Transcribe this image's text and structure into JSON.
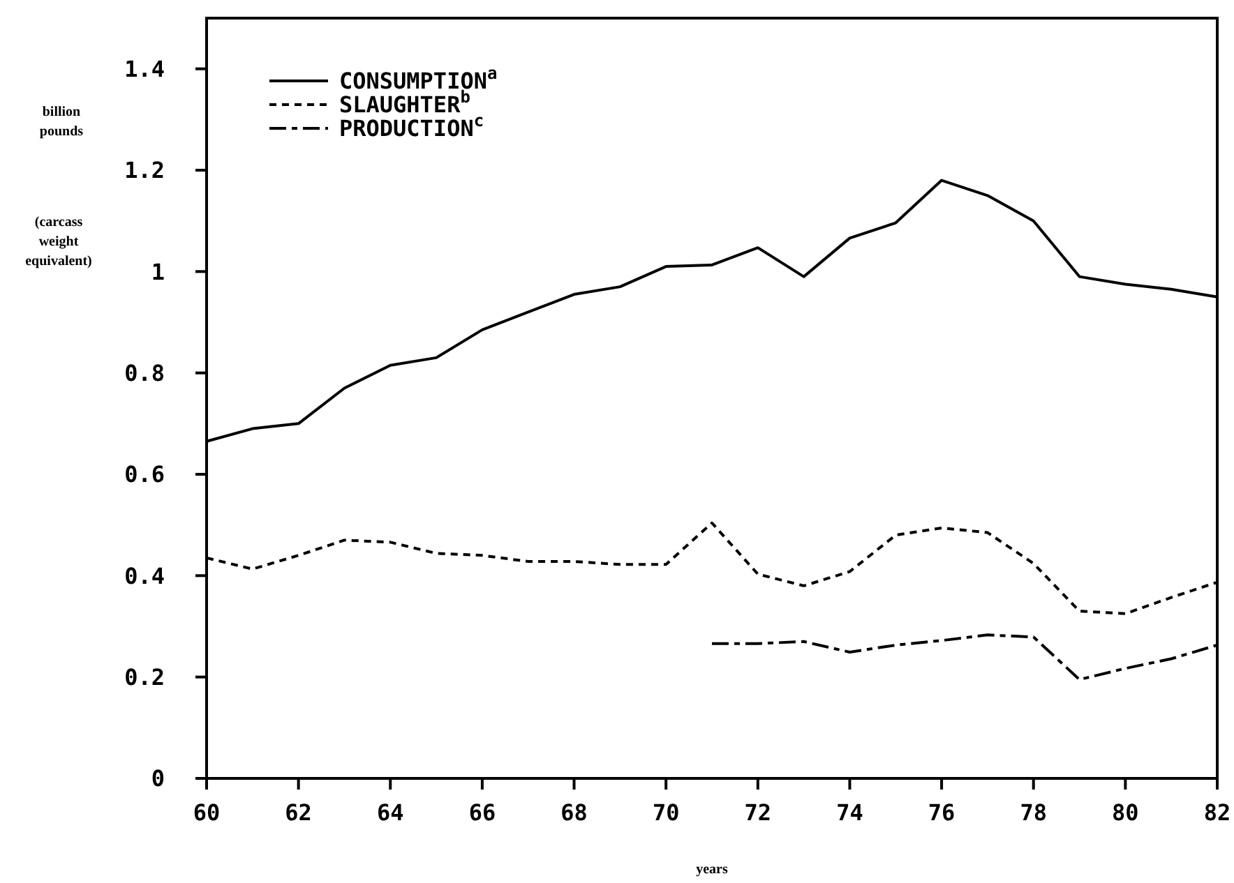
{
  "chart_data": {
    "type": "line",
    "xlabel": "years",
    "ylabel": "billion pounds",
    "annotations": [
      "(carcass weight equivalent)"
    ],
    "x": [
      60,
      61,
      62,
      63,
      64,
      65,
      66,
      67,
      68,
      69,
      70,
      71,
      72,
      73,
      74,
      75,
      76,
      77,
      78,
      79,
      80,
      81,
      82
    ],
    "xlim": [
      60,
      82
    ],
    "xticks": [
      60,
      62,
      64,
      66,
      68,
      70,
      72,
      74,
      76,
      78,
      80,
      82
    ],
    "ylim": [
      0,
      1.5
    ],
    "yticks": [
      0,
      {
        "value": 0.2,
        "label": "0.2"
      },
      {
        "value": 0.4,
        "label": "0.4"
      },
      {
        "value": 0.6,
        "label": "0.6"
      },
      {
        "value": 0.8,
        "label": "0.8"
      },
      1,
      {
        "value": 1.2,
        "label": "1.2"
      },
      {
        "value": 1.4,
        "label": "1.4"
      }
    ],
    "grid": false,
    "legend": "top left",
    "marker": "none",
    "series": [
      {
        "name": "CONSUMPTION$^{a}$",
        "color": "#000000",
        "line_style": "solid",
        "values": [
          0.665,
          0.69,
          0.7,
          0.77,
          0.815,
          0.83,
          0.885,
          0.92,
          0.955,
          0.97,
          1.01,
          1.013,
          1.047,
          0.99,
          1.066,
          1.096,
          1.18,
          1.15,
          1.1,
          0.99,
          0.975,
          0.965,
          0.95
        ]
      },
      {
        "name": "SLAUGHTER$^{b}$",
        "color": "#000000",
        "line_style": "dotted",
        "values": [
          0.435,
          0.413,
          0.44,
          0.47,
          0.466,
          0.444,
          0.44,
          0.428,
          0.428,
          0.422,
          0.422,
          0.504,
          0.403,
          0.38,
          0.408,
          0.48,
          0.494,
          0.485,
          0.424,
          0.33,
          0.325,
          0.357,
          0.387
        ]
      },
      {
        "name": "PRODUCTION$^{c}$",
        "color": "#000000",
        "line_style": "dashed",
        "x": [
          71,
          72,
          73,
          74,
          75,
          76,
          77,
          78,
          79,
          80,
          81,
          82
        ],
        "values": [
          0.266,
          0.266,
          0.27,
          0.249,
          0.263,
          0.272,
          0.283,
          0.279,
          0.195,
          0.217,
          0.236,
          0.263
        ]
      }
    ]
  }
}
